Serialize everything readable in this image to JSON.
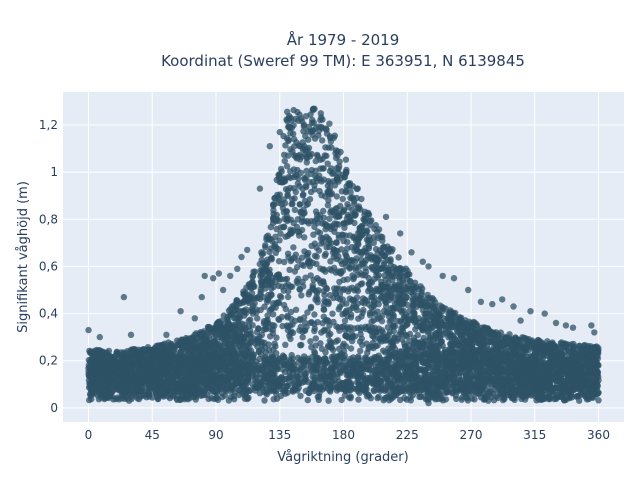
{
  "chart_data": {
    "type": "scatter",
    "title_line1": "År 1979 - 2019",
    "title_line2": "Koordinat (Sweref 99 TM): E 363951, N 6139845",
    "xlabel": "Vågriktning (grader)",
    "ylabel": "Signifikant våghöjd (m)",
    "xlim": [
      -18,
      378
    ],
    "ylim": [
      -0.06,
      1.34
    ],
    "x_ticks": [
      0,
      45,
      90,
      135,
      180,
      225,
      270,
      315,
      360
    ],
    "x_tick_labels": [
      "0",
      "45",
      "90",
      "135",
      "180",
      "225",
      "270",
      "315",
      "360"
    ],
    "y_ticks": [
      0,
      0.2,
      0.4,
      0.6,
      0.8,
      1.0,
      1.2
    ],
    "y_tick_labels": [
      "0",
      "0,2",
      "0,4",
      "0,6",
      "0,8",
      "1",
      "1,2"
    ],
    "grid": true,
    "legend": "none",
    "marker_color": "#2e5266",
    "plot_background": "#e5ecf6",
    "upper_envelope": {
      "x": [
        0,
        20,
        45,
        70,
        90,
        100,
        110,
        120,
        128,
        135,
        140,
        150,
        160,
        170,
        180,
        190,
        200,
        210,
        220,
        230,
        240,
        250,
        260,
        270,
        285,
        300,
        315,
        330,
        345,
        360
      ],
      "y": [
        0.25,
        0.24,
        0.26,
        0.3,
        0.36,
        0.42,
        0.5,
        0.62,
        0.78,
        1.05,
        1.27,
        1.28,
        1.28,
        1.22,
        1.08,
        0.93,
        0.8,
        0.72,
        0.63,
        0.55,
        0.48,
        0.43,
        0.4,
        0.37,
        0.33,
        0.31,
        0.29,
        0.28,
        0.27,
        0.26
      ]
    },
    "lower_bound_y": 0.03,
    "core_band": {
      "x_min": 0,
      "x_max": 360,
      "y_min": 0.07,
      "y_max": 0.22
    },
    "outliers": [
      {
        "x": 0,
        "y": 0.33
      },
      {
        "x": 8,
        "y": 0.3
      },
      {
        "x": 25,
        "y": 0.47
      },
      {
        "x": 30,
        "y": 0.31
      },
      {
        "x": 55,
        "y": 0.31
      },
      {
        "x": 65,
        "y": 0.41
      },
      {
        "x": 75,
        "y": 0.38
      },
      {
        "x": 80,
        "y": 0.47
      },
      {
        "x": 82,
        "y": 0.56
      },
      {
        "x": 88,
        "y": 0.55
      },
      {
        "x": 92,
        "y": 0.57
      },
      {
        "x": 95,
        "y": 0.5
      },
      {
        "x": 100,
        "y": 0.56
      },
      {
        "x": 105,
        "y": 0.59
      },
      {
        "x": 108,
        "y": 0.64
      },
      {
        "x": 112,
        "y": 0.67
      },
      {
        "x": 121,
        "y": 0.93
      },
      {
        "x": 128,
        "y": 1.11
      },
      {
        "x": 135,
        "y": 1.17
      },
      {
        "x": 182,
        "y": 1.0
      },
      {
        "x": 190,
        "y": 0.93
      },
      {
        "x": 198,
        "y": 0.82
      },
      {
        "x": 210,
        "y": 0.81
      },
      {
        "x": 220,
        "y": 0.74
      },
      {
        "x": 228,
        "y": 0.66
      },
      {
        "x": 236,
        "y": 0.62
      },
      {
        "x": 240,
        "y": 0.6
      },
      {
        "x": 250,
        "y": 0.56
      },
      {
        "x": 258,
        "y": 0.55
      },
      {
        "x": 268,
        "y": 0.5
      },
      {
        "x": 277,
        "y": 0.45
      },
      {
        "x": 285,
        "y": 0.44
      },
      {
        "x": 292,
        "y": 0.46
      },
      {
        "x": 300,
        "y": 0.43
      },
      {
        "x": 305,
        "y": 0.37
      },
      {
        "x": 312,
        "y": 0.41
      },
      {
        "x": 322,
        "y": 0.4
      },
      {
        "x": 330,
        "y": 0.36
      },
      {
        "x": 337,
        "y": 0.35
      },
      {
        "x": 342,
        "y": 0.34
      },
      {
        "x": 355,
        "y": 0.35
      },
      {
        "x": 357,
        "y": 0.32
      },
      {
        "x": 240,
        "y": 0.02
      },
      {
        "x": 280,
        "y": 0.05
      },
      {
        "x": 300,
        "y": 0.04
      },
      {
        "x": 315,
        "y": 0.05
      },
      {
        "x": 325,
        "y": 0.07
      },
      {
        "x": 345,
        "y": 0.05
      }
    ]
  }
}
